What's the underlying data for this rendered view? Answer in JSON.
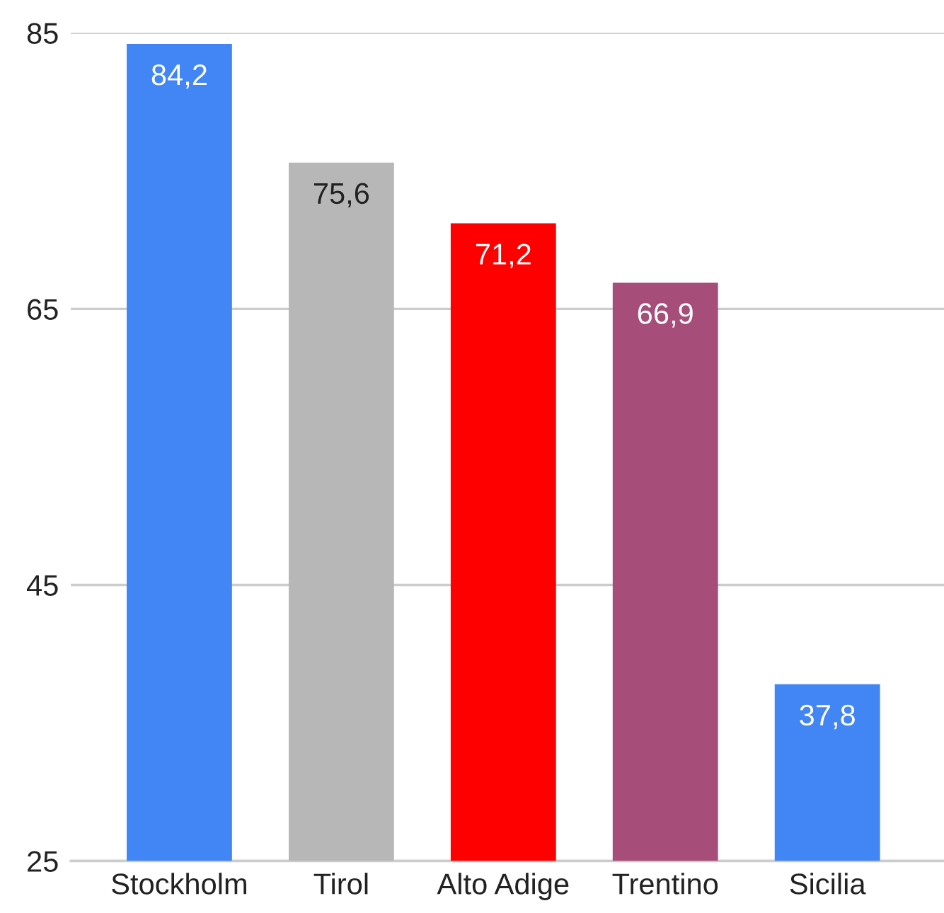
{
  "chart_data": {
    "type": "bar",
    "categories": [
      "Stockholm",
      "Tirol",
      "Alto Adige",
      "Trentino",
      "Sicilia"
    ],
    "values": [
      84.2,
      75.6,
      71.2,
      66.9,
      37.8
    ],
    "colors": [
      "#4285f4",
      "#b7b7b7",
      "#ff0000",
      "#a64d79",
      "#4285f4"
    ],
    "value_labels": [
      "84,2",
      "75,6",
      "71,2",
      "66,9",
      "37,8"
    ],
    "ylim": [
      25,
      85
    ],
    "yticks": [
      25,
      45,
      65,
      85
    ],
    "grid": "y"
  }
}
